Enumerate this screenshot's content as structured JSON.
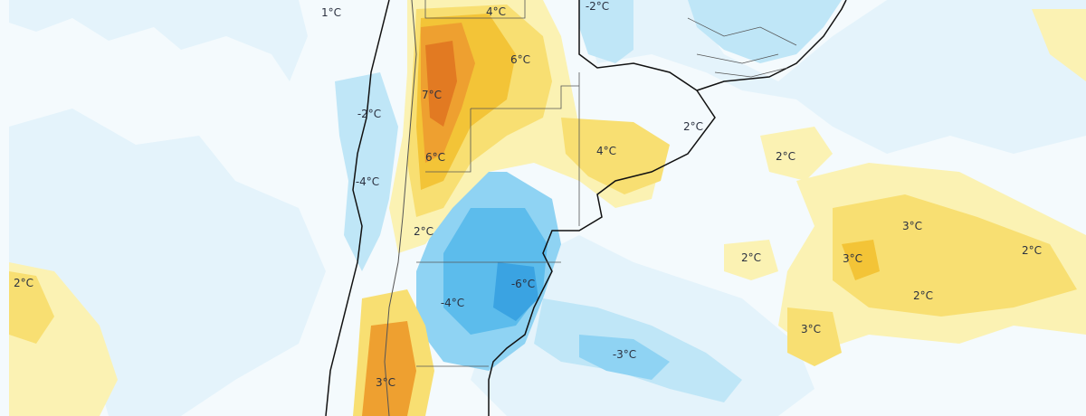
{
  "map": {
    "colors": {
      "ocean_light": "#e4f3fb",
      "ocean_neutral": "#f4fafd",
      "cold_1": "#bfe6f7",
      "cold_2": "#8fd3f3",
      "cold_3": "#5cbcec",
      "cold_4": "#3aa3e2",
      "warm_1": "#fbf2b3",
      "warm_2": "#f8df72",
      "warm_3": "#f3c437",
      "warm_4": "#eea030",
      "warm_5": "#e27a22",
      "coast": "#111111",
      "border": "#555555"
    },
    "labels": [
      {
        "id": "l1",
        "text": "1°C",
        "tone": "neutral"
      },
      {
        "id": "l2",
        "text": "4°C",
        "tone": "warm"
      },
      {
        "id": "l3",
        "text": "-2°C",
        "tone": "cold"
      },
      {
        "id": "l4",
        "text": "6°C",
        "tone": "warm"
      },
      {
        "id": "l5",
        "text": "7°C",
        "tone": "warm"
      },
      {
        "id": "l6",
        "text": "-2°C",
        "tone": "cold"
      },
      {
        "id": "l7",
        "text": "6°C",
        "tone": "warm"
      },
      {
        "id": "l8",
        "text": "2°C",
        "tone": "warm"
      },
      {
        "id": "l9",
        "text": "4°C",
        "tone": "warm"
      },
      {
        "id": "l10",
        "text": "2°C",
        "tone": "warm"
      },
      {
        "id": "l11",
        "text": "-4°C",
        "tone": "cold"
      },
      {
        "id": "l12",
        "text": "2°C",
        "tone": "warm"
      },
      {
        "id": "l13",
        "text": "3°C",
        "tone": "warm"
      },
      {
        "id": "l14",
        "text": "3°C",
        "tone": "warm"
      },
      {
        "id": "l15",
        "text": "2°C",
        "tone": "warm"
      },
      {
        "id": "l16",
        "text": "2°C",
        "tone": "warm"
      },
      {
        "id": "l17",
        "text": "2°C",
        "tone": "warm"
      },
      {
        "id": "l18",
        "text": "-4°C",
        "tone": "cold"
      },
      {
        "id": "l19",
        "text": "-6°C",
        "tone": "cold"
      },
      {
        "id": "l20",
        "text": "2°C",
        "tone": "warm"
      },
      {
        "id": "l21",
        "text": "3°C",
        "tone": "warm"
      },
      {
        "id": "l22",
        "text": "-3°C",
        "tone": "cold"
      },
      {
        "id": "l23",
        "text": "3°C",
        "tone": "warm"
      }
    ]
  }
}
